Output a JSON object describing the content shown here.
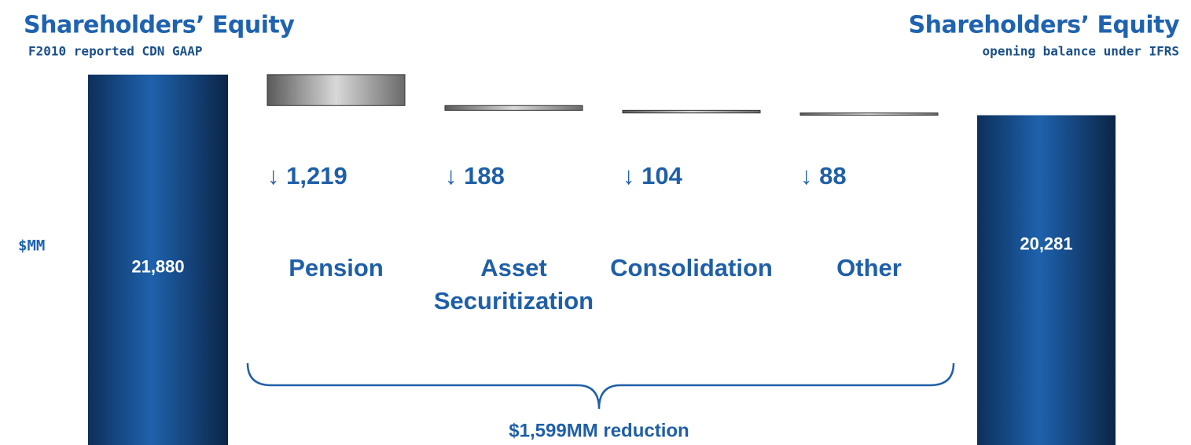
{
  "chart_data": {
    "type": "waterfall",
    "y_label": "$MM",
    "ylim": [
      7300,
      22000
    ],
    "start": {
      "title": "Shareholders’ Equity",
      "subtitle": "F2010 reported CDN GAAP",
      "value": 21880,
      "value_label": "21,880"
    },
    "categories": [
      "Pension",
      "Asset Securitization",
      "Consolidation",
      "Other"
    ],
    "values": [
      -1219,
      -188,
      -104,
      -88
    ],
    "value_labels": [
      "↓ 1,219",
      "↓ 188",
      "↓ 104",
      "↓ 88"
    ],
    "end": {
      "title": "Shareholders’ Equity",
      "subtitle": "opening balance under IFRS",
      "value": 20281,
      "value_label": "20,281"
    },
    "annotation": "$1,599MM reduction"
  }
}
